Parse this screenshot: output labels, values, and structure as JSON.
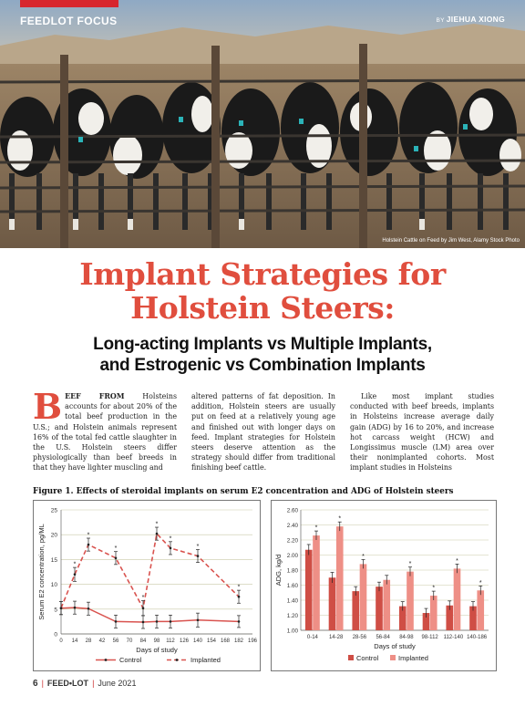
{
  "header": {
    "section": "FEEDLOT FOCUS",
    "byline_prefix": "BY",
    "author": "JIEHUA XIONG",
    "photo_credit": "Holstein Cattle on Feed by Jim West, Alamy Stock Photo"
  },
  "article": {
    "title_line1": "Implant Strategies for",
    "title_line2": "Holstein Steers:",
    "subtitle_line1": "Long-acting Implants vs Multiple Implants,",
    "subtitle_line2": "and Estrogenic vs Combination Implants",
    "dropcap": "B",
    "lead_caps": "EEF FROM",
    "col1_text": " Holsteins accounts for about 20% of the total beef production in the U.S.; and Holstein animals represent 16% of the total fed cattle slaughter in the U.S. Holstein steers differ physiologically than beef breeds in that they have lighter muscling and",
    "col2_text": "altered patterns of fat deposition. In addition, Holstein steers are usually put on feed at a relatively young age and finished out with longer days on feed. Implant strategies for Holstein steers deserve attention as the strategy should differ from traditional finishing beef cattle.",
    "col3_text": "Like most implant studies conducted with beef breeds, implants in Holsteins increase average daily gain (ADG) by 16 to 20%, and increase hot carcass weight (HCW) and Longissimus muscle (LM) area over their nonimplanted cohorts. Most implant studies in Holsteins"
  },
  "figure": {
    "caption": "Figure 1. Effects of steroidal implants on serum E2 concentration and ADG of Holstein steers"
  },
  "chart_data": [
    {
      "type": "line",
      "xlabel": "Days of study",
      "ylabel": "Serum E2 concentration, pg/ML",
      "xlim": [
        0,
        196
      ],
      "ylim": [
        0,
        25
      ],
      "x_ticks": [
        0,
        14,
        28,
        42,
        56,
        70,
        84,
        98,
        112,
        126,
        140,
        154,
        168,
        182,
        196
      ],
      "y_ticks": [
        0,
        5,
        10,
        15,
        20,
        25
      ],
      "grid": true,
      "legend": "bottom",
      "series": [
        {
          "name": "Control",
          "color": "#d9534f",
          "dash": "solid",
          "x": [
            0,
            14,
            28,
            56,
            84,
            98,
            112,
            140,
            182
          ],
          "y": [
            5.2,
            5.3,
            5.1,
            2.5,
            2.4,
            2.5,
            2.5,
            2.8,
            2.5
          ],
          "err": [
            1.3,
            1.3,
            1.3,
            1.3,
            1.3,
            1.3,
            1.3,
            1.4,
            1.2
          ]
        },
        {
          "name": "Implanted",
          "color": "#d9534f",
          "dash": "dashed",
          "x": [
            0,
            14,
            28,
            56,
            84,
            98,
            112,
            140,
            182
          ],
          "y": [
            5.2,
            12.0,
            18.0,
            15.3,
            5.2,
            20.2,
            17.3,
            15.7,
            7.5
          ],
          "err": [
            1.3,
            1.4,
            1.3,
            1.3,
            1.5,
            1.3,
            1.3,
            1.3,
            1.3
          ],
          "sig": [
            "",
            "*",
            "*",
            "*",
            "*",
            "*",
            "*",
            "*",
            "*"
          ]
        }
      ]
    },
    {
      "type": "bar",
      "xlabel": "Days of study",
      "ylabel": "ADG, kg/d",
      "ylim": [
        1.0,
        2.6
      ],
      "y_ticks": [
        1.0,
        1.2,
        1.4,
        1.6,
        1.8,
        2.0,
        2.2,
        2.4,
        2.6
      ],
      "categories": [
        "0-14",
        "14-28",
        "28-56",
        "56-84",
        "84-98",
        "98-112",
        "112-140",
        "140-186"
      ],
      "grid": true,
      "legend": "bottom",
      "series": [
        {
          "name": "Control",
          "color": "#cf4e45",
          "values": [
            2.07,
            1.7,
            1.52,
            1.58,
            1.32,
            1.23,
            1.33,
            1.32
          ],
          "err": [
            0.07,
            0.07,
            0.06,
            0.06,
            0.06,
            0.06,
            0.06,
            0.06
          ]
        },
        {
          "name": "Implanted",
          "color": "#ee8f86",
          "values": [
            2.26,
            2.38,
            1.88,
            1.67,
            1.78,
            1.46,
            1.82,
            1.53
          ],
          "err": [
            0.06,
            0.06,
            0.06,
            0.06,
            0.06,
            0.06,
            0.06,
            0.06
          ],
          "sig": [
            "*",
            "*",
            "*",
            "",
            "*",
            "*",
            "*",
            "*"
          ]
        }
      ]
    }
  ],
  "footer": {
    "page": "6",
    "publication": "FEED•LOT",
    "date": "June 2021"
  }
}
